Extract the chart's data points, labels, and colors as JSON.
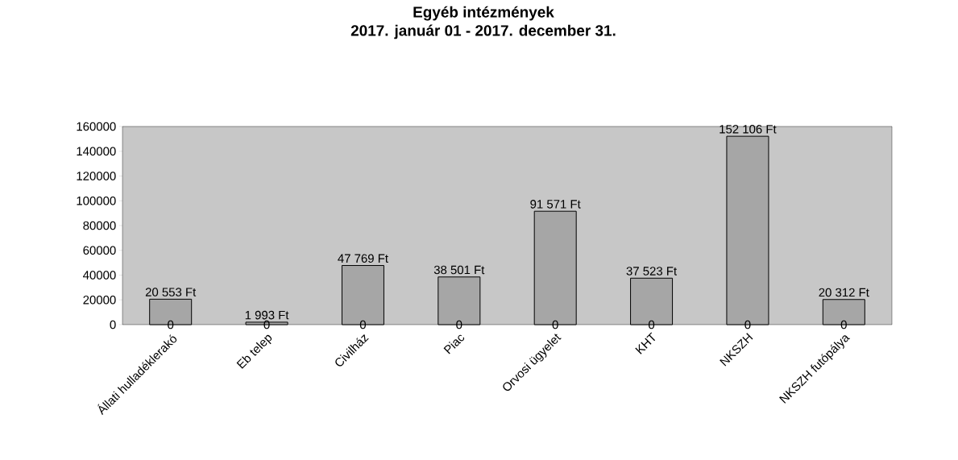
{
  "chart_data": {
    "type": "bar",
    "title": "Egyéb intézmények",
    "subtitle": "2017. január 01 - 2017. december 31.",
    "categories": [
      "Állati hulladéklerakó",
      "Eb telep",
      "Civilház",
      "Piac",
      "Orvosi ügyelet",
      "KHT",
      "NKSZH",
      "NKSZH futópálya"
    ],
    "values": [
      20553,
      1993,
      47769,
      38501,
      91571,
      37523,
      152106,
      20312
    ],
    "value_labels": [
      "20 553 Ft",
      "1 993 Ft",
      "47 769 Ft",
      "38 501 Ft",
      "91 571 Ft",
      "37 523 Ft",
      "152 106 Ft",
      "20 312 Ft"
    ],
    "color": "#a6a6a6",
    "ylim": [
      0,
      160000
    ],
    "yticks": [
      0,
      20000,
      40000,
      60000,
      80000,
      100000,
      120000,
      140000,
      160000
    ],
    "annotations": [
      {
        "text": "0",
        "x": "Állati hulladéklerakó",
        "y": 0
      },
      {
        "text": "0",
        "x": "Eb telep",
        "y": 0
      },
      {
        "text": "0",
        "x": "Civilház",
        "y": 0
      },
      {
        "text": "0",
        "x": "Piac",
        "y": 0
      },
      {
        "text": "0",
        "x": "Orvosi ügyelet",
        "y": 0
      },
      {
        "text": "0",
        "x": "KHT",
        "y": 0
      },
      {
        "text": "0",
        "x": "NKSZH",
        "y": 0
      },
      {
        "text": "0",
        "x": "NKSZH futópálya",
        "y": 0
      }
    ],
    "grid": false
  }
}
